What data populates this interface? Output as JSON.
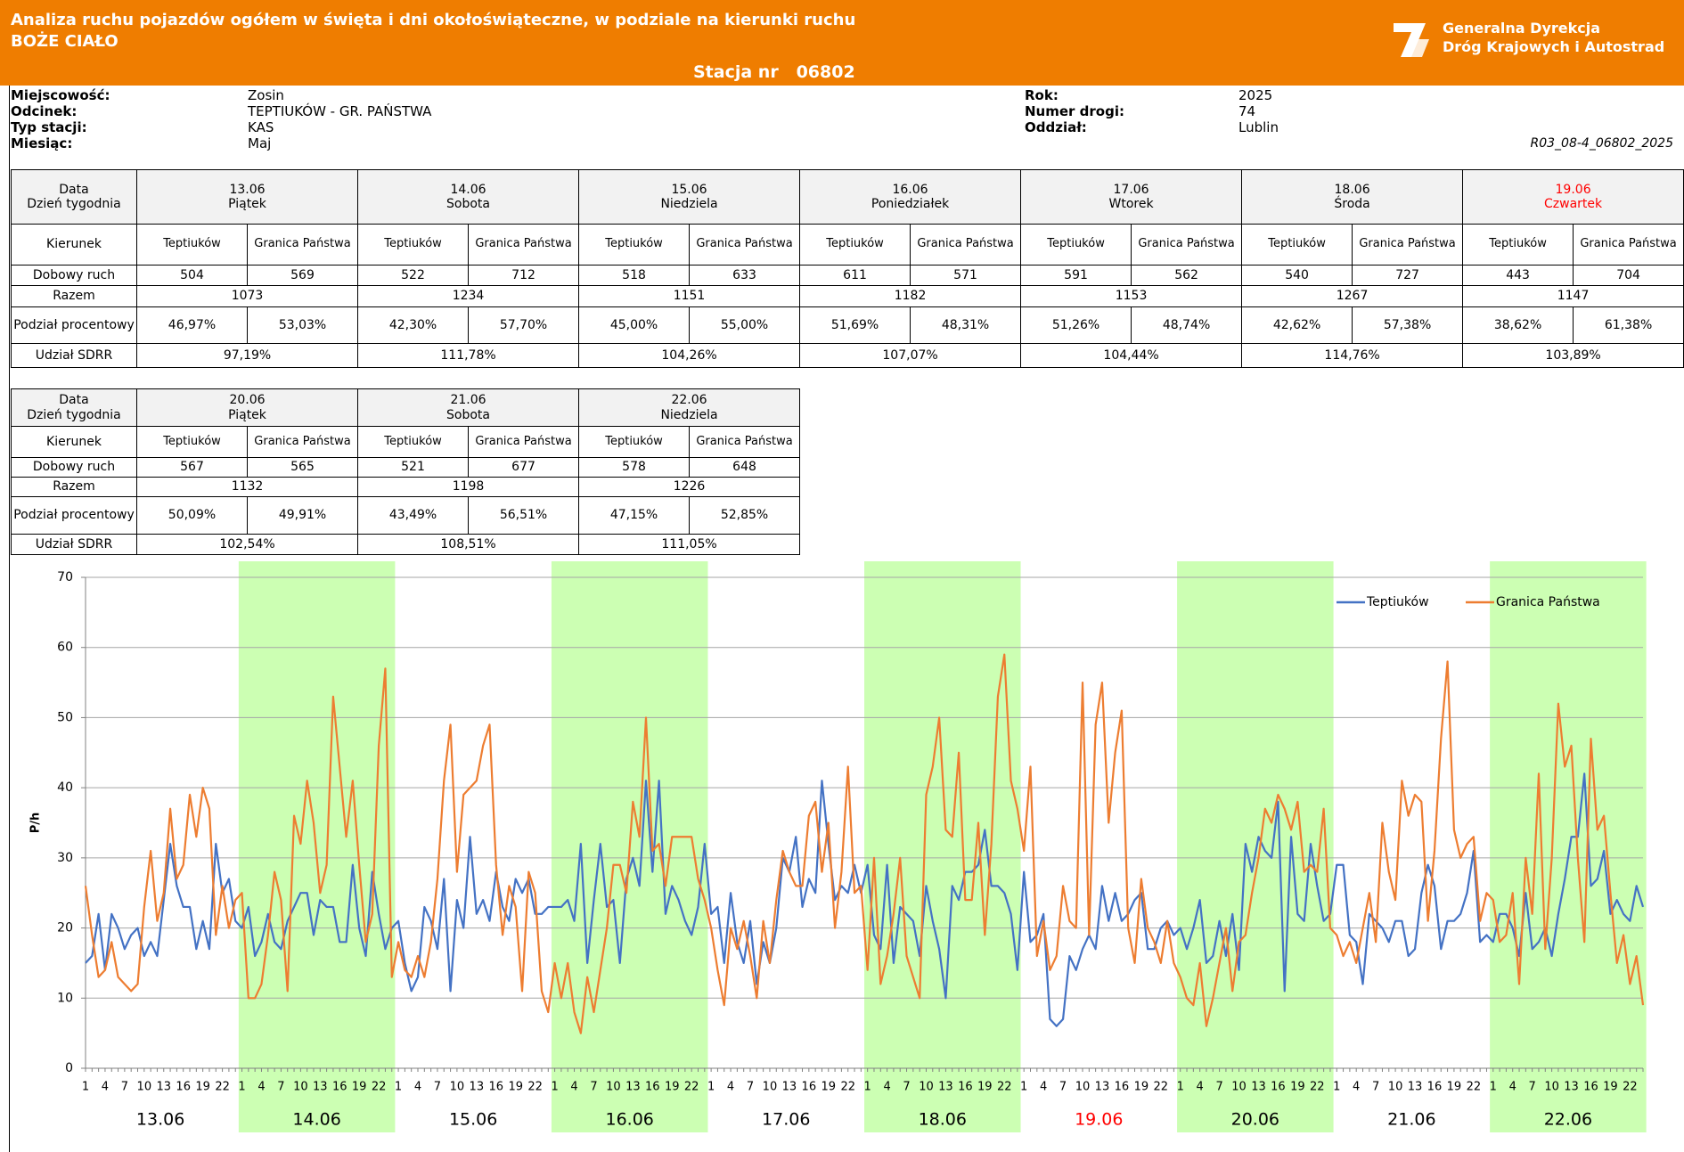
{
  "header": {
    "title": "Analiza ruchu pojazdów ogółem w święta i dni okołoświąteczne, w podziale na kierunki ruchu",
    "subtitle": "BOŻE CIAŁO",
    "station_label": "Stacja nr",
    "station": "06802",
    "logo": [
      "Generalna Dyrekcja",
      "Dróg Krajowych i Autostrad"
    ]
  },
  "info": {
    "left": [
      [
        "Miejscowość:",
        "Zosin"
      ],
      [
        "Odcinek:",
        "TEPTIUKÓW - GR. PAŃSTWA"
      ],
      [
        "Typ stacji:",
        "KAS"
      ],
      [
        "Miesiąc:",
        "Maj"
      ]
    ],
    "right": [
      [
        "Rok:",
        "2025"
      ],
      [
        "Numer drogi:",
        "74"
      ],
      [
        "Oddział:",
        "Lublin"
      ]
    ],
    "code": "R03_08-4_06802_2025"
  },
  "tables": [
    {
      "labels": {
        "date": "Data",
        "weekday": "Dzień tygodnia",
        "direction": "Kierunek",
        "daily": "Dobowy ruch",
        "total": "Razem",
        "split": "Podział procentowy",
        "sdrr": "Udział SDRR"
      },
      "days": [
        {
          "date": "13.06",
          "weekday": "Piątek",
          "directions": [
            "Teptiuków",
            "Granica Państwa"
          ],
          "daily": [
            504,
            569
          ],
          "total": 1073,
          "split": [
            "46,97%",
            "53,03%"
          ],
          "sdrr": "97,19%"
        },
        {
          "date": "14.06",
          "weekday": "Sobota",
          "directions": [
            "Teptiuków",
            "Granica Państwa"
          ],
          "daily": [
            522,
            712
          ],
          "total": 1234,
          "split": [
            "42,30%",
            "57,70%"
          ],
          "sdrr": "111,78%"
        },
        {
          "date": "15.06",
          "weekday": "Niedziela",
          "directions": [
            "Teptiuków",
            "Granica Państwa"
          ],
          "daily": [
            518,
            633
          ],
          "total": 1151,
          "split": [
            "45,00%",
            "55,00%"
          ],
          "sdrr": "104,26%"
        },
        {
          "date": "16.06",
          "weekday": "Poniedziałek",
          "directions": [
            "Teptiuków",
            "Granica Państwa"
          ],
          "daily": [
            611,
            571
          ],
          "total": 1182,
          "split": [
            "51,69%",
            "48,31%"
          ],
          "sdrr": "107,07%"
        },
        {
          "date": "17.06",
          "weekday": "Wtorek",
          "directions": [
            "Teptiuków",
            "Granica Państwa"
          ],
          "daily": [
            591,
            562
          ],
          "total": 1153,
          "split": [
            "51,26%",
            "48,74%"
          ],
          "sdrr": "104,44%"
        },
        {
          "date": "18.06",
          "weekday": "Środa",
          "directions": [
            "Teptiuków",
            "Granica Państwa"
          ],
          "daily": [
            540,
            727
          ],
          "total": 1267,
          "split": [
            "42,62%",
            "57,38%"
          ],
          "sdrr": "114,76%"
        },
        {
          "date": "19.06",
          "weekday": "Czwartek",
          "color": "#ff0000",
          "directions": [
            "Teptiuków",
            "Granica Państwa"
          ],
          "daily": [
            443,
            704
          ],
          "total": 1147,
          "split": [
            "38,62%",
            "61,38%"
          ],
          "sdrr": "103,89%"
        }
      ]
    },
    {
      "labels": {
        "date": "Data",
        "weekday": "Dzień tygodnia",
        "direction": "Kierunek",
        "daily": "Dobowy ruch",
        "total": "Razem",
        "split": "Podział procentowy",
        "sdrr": "Udział SDRR"
      },
      "days": [
        {
          "date": "20.06",
          "weekday": "Piątek",
          "directions": [
            "Teptiuków",
            "Granica Państwa"
          ],
          "daily": [
            567,
            565
          ],
          "total": 1132,
          "split": [
            "50,09%",
            "49,91%"
          ],
          "sdrr": "102,54%"
        },
        {
          "date": "21.06",
          "weekday": "Sobota",
          "directions": [
            "Teptiuków",
            "Granica Państwa"
          ],
          "daily": [
            521,
            677
          ],
          "total": 1198,
          "split": [
            "43,49%",
            "56,51%"
          ],
          "sdrr": "108,51%"
        },
        {
          "date": "22.06",
          "weekday": "Niedziela",
          "directions": [
            "Teptiuków",
            "Granica Państwa"
          ],
          "daily": [
            578,
            648
          ],
          "total": 1226,
          "split": [
            "47,15%",
            "52,85%"
          ],
          "sdrr": "111,05%"
        }
      ]
    }
  ],
  "chart_data": {
    "type": "line",
    "y_label": "P/h",
    "ylim": [
      0,
      70
    ],
    "yticks": [
      0,
      10,
      20,
      30,
      40,
      50,
      60,
      70
    ],
    "grid": true,
    "legend": "top-right",
    "band_color": "#ccffb3",
    "categories": [
      "1",
      null,
      null,
      "4",
      null,
      null,
      "7",
      null,
      null,
      "10",
      null,
      null,
      "13",
      null,
      null,
      "16",
      null,
      null,
      "19",
      null,
      null,
      "22",
      null,
      null,
      "1",
      null,
      null,
      "4",
      null,
      null,
      "7",
      null,
      null,
      "10",
      null,
      null,
      "13",
      null,
      null,
      "16",
      null,
      null,
      "19",
      null,
      null,
      "22",
      null,
      null,
      "1",
      null,
      null,
      "4",
      null,
      null,
      "7",
      null,
      null,
      "10",
      null,
      null,
      "13",
      null,
      null,
      "16",
      null,
      null,
      "19",
      null,
      null,
      "22",
      null,
      null,
      "1",
      null,
      null,
      "4",
      null,
      null,
      "7",
      null,
      null,
      "10",
      null,
      null,
      "13",
      null,
      null,
      "16",
      null,
      null,
      "19",
      null,
      null,
      "22",
      null,
      null,
      "1",
      null,
      null,
      "4",
      null,
      null,
      "7",
      null,
      null,
      "10",
      null,
      null,
      "13",
      null,
      null,
      "16",
      null,
      null,
      "19",
      null,
      null,
      "22",
      null,
      null,
      "1",
      null,
      null,
      "4",
      null,
      null,
      "7",
      null,
      null,
      "10",
      null,
      null,
      "13",
      null,
      null,
      "16",
      null,
      null,
      "19",
      null,
      null,
      "22",
      null,
      null,
      "1",
      null,
      null,
      "4",
      null,
      null,
      "7",
      null,
      null,
      "10",
      null,
      null,
      "13",
      null,
      null,
      "16",
      null,
      null,
      "19",
      null,
      null,
      "22",
      null,
      null,
      "1",
      null,
      null,
      "4",
      null,
      null,
      "7",
      null,
      null,
      "10",
      null,
      null,
      "13",
      null,
      null,
      "16",
      null,
      null,
      "19",
      null,
      null,
      "22",
      null,
      null,
      "1",
      null,
      null,
      "4",
      null,
      null,
      "7",
      null,
      null,
      "10",
      null,
      null,
      "13",
      null,
      null,
      "16",
      null,
      null,
      "19",
      null,
      null,
      "22",
      null,
      null,
      "1",
      null,
      null,
      "4",
      null,
      null,
      "7",
      null,
      null,
      "10",
      null,
      null,
      "13",
      null,
      null,
      "16",
      null,
      null,
      "19",
      null,
      null,
      "22",
      null,
      null
    ],
    "groups": [
      {
        "label": "13.06",
        "band": false
      },
      {
        "label": "14.06",
        "band": true
      },
      {
        "label": "15.06",
        "band": false
      },
      {
        "label": "16.06",
        "band": true
      },
      {
        "label": "17.06",
        "band": false
      },
      {
        "label": "18.06",
        "band": true
      },
      {
        "label": "19.06",
        "band": false,
        "color": "#ff0000"
      },
      {
        "label": "20.06",
        "band": true
      },
      {
        "label": "21.06",
        "band": false
      },
      {
        "label": "22.06",
        "band": true
      }
    ],
    "series": [
      {
        "name": "Teptiuków",
        "color": "#4472c4",
        "values": [
          15,
          16,
          22,
          14,
          22,
          20,
          17,
          19,
          20,
          16,
          18,
          16,
          24,
          32,
          26,
          23,
          23,
          17,
          21,
          17,
          32,
          25,
          27,
          21,
          20,
          23,
          16,
          18,
          22,
          18,
          17,
          21,
          23,
          25,
          25,
          19,
          24,
          23,
          23,
          18,
          18,
          29,
          20,
          16,
          28,
          22,
          17,
          20,
          21,
          15,
          11,
          13,
          23,
          21,
          17,
          27,
          11,
          24,
          20,
          33,
          22,
          24,
          21,
          28,
          23,
          21,
          27,
          25,
          27,
          22,
          22,
          23,
          23,
          23,
          24,
          21,
          32,
          15,
          24,
          32,
          23,
          24,
          15,
          27,
          30,
          26,
          41,
          28,
          41,
          22,
          26,
          24,
          21,
          19,
          23,
          32,
          22,
          23,
          15,
          25,
          18,
          15,
          21,
          12,
          18,
          15,
          20,
          30,
          28,
          33,
          23,
          27,
          25,
          41,
          32,
          24,
          26,
          25,
          29,
          25,
          29,
          19,
          17,
          29,
          15,
          23,
          22,
          21,
          16,
          26,
          21,
          17,
          10,
          26,
          24,
          28,
          28,
          29,
          34,
          26,
          26,
          25,
          22,
          14,
          28,
          18,
          19,
          22,
          7,
          6,
          7,
          16,
          14,
          17,
          19,
          17,
          26,
          21,
          25,
          21,
          22,
          24,
          25,
          17,
          17,
          20,
          21,
          19,
          20,
          17,
          20,
          24,
          15,
          16,
          21,
          16,
          22,
          14,
          32,
          28,
          33,
          31,
          30,
          38,
          11,
          33,
          22,
          21,
          32,
          26,
          21,
          22,
          29,
          29,
          19,
          18,
          12,
          22,
          21,
          20,
          18,
          21,
          21,
          16,
          17,
          25,
          29,
          26,
          17,
          21,
          21,
          22,
          25,
          31,
          18,
          19,
          18,
          22,
          22,
          20,
          16,
          25,
          17,
          18,
          20,
          16,
          22,
          27,
          33,
          33,
          42,
          26,
          27,
          31,
          22,
          24,
          22,
          21,
          26,
          23
        ]
      },
      {
        "name": "Granica Państwa",
        "color": "#ed7d31",
        "values": [
          26,
          19,
          13,
          14,
          18,
          13,
          12,
          11,
          12,
          23,
          31,
          21,
          25,
          37,
          27,
          29,
          39,
          33,
          40,
          37,
          19,
          26,
          20,
          24,
          25,
          10,
          10,
          12,
          19,
          28,
          24,
          11,
          36,
          32,
          41,
          35,
          25,
          29,
          53,
          43,
          33,
          41,
          29,
          18,
          22,
          46,
          57,
          13,
          18,
          14,
          13,
          16,
          13,
          18,
          27,
          41,
          49,
          28,
          39,
          40,
          41,
          46,
          49,
          29,
          19,
          26,
          23,
          11,
          28,
          25,
          11,
          8,
          15,
          10,
          15,
          8,
          5,
          13,
          8,
          14,
          20,
          29,
          29,
          25,
          38,
          33,
          50,
          31,
          32,
          26,
          33,
          33,
          33,
          33,
          27,
          24,
          20,
          14,
          9,
          20,
          17,
          21,
          16,
          10,
          21,
          15,
          24,
          31,
          28,
          26,
          26,
          36,
          38,
          28,
          35,
          20,
          28,
          43,
          25,
          26,
          14,
          30,
          12,
          16,
          22,
          30,
          16,
          13,
          10,
          39,
          43,
          50,
          34,
          33,
          45,
          24,
          24,
          35,
          19,
          32,
          53,
          59,
          41,
          37,
          31,
          43,
          16,
          21,
          14,
          16,
          26,
          21,
          20,
          55,
          19,
          49,
          55,
          35,
          45,
          51,
          20,
          15,
          27,
          20,
          18,
          15,
          21,
          15,
          13,
          10,
          9,
          15,
          6,
          10,
          15,
          20,
          11,
          18,
          19,
          25,
          30,
          37,
          35,
          39,
          37,
          34,
          38,
          28,
          29,
          28,
          37,
          20,
          19,
          16,
          18,
          15,
          20,
          25,
          18,
          35,
          28,
          24,
          41,
          36,
          39,
          38,
          21,
          31,
          47,
          58,
          34,
          30,
          32,
          33,
          21,
          25,
          24,
          18,
          19,
          25,
          12,
          30,
          22,
          42,
          17,
          30,
          52,
          43,
          46,
          30,
          18,
          47,
          34,
          36,
          25,
          15,
          19,
          12,
          16,
          9
        ]
      }
    ]
  }
}
